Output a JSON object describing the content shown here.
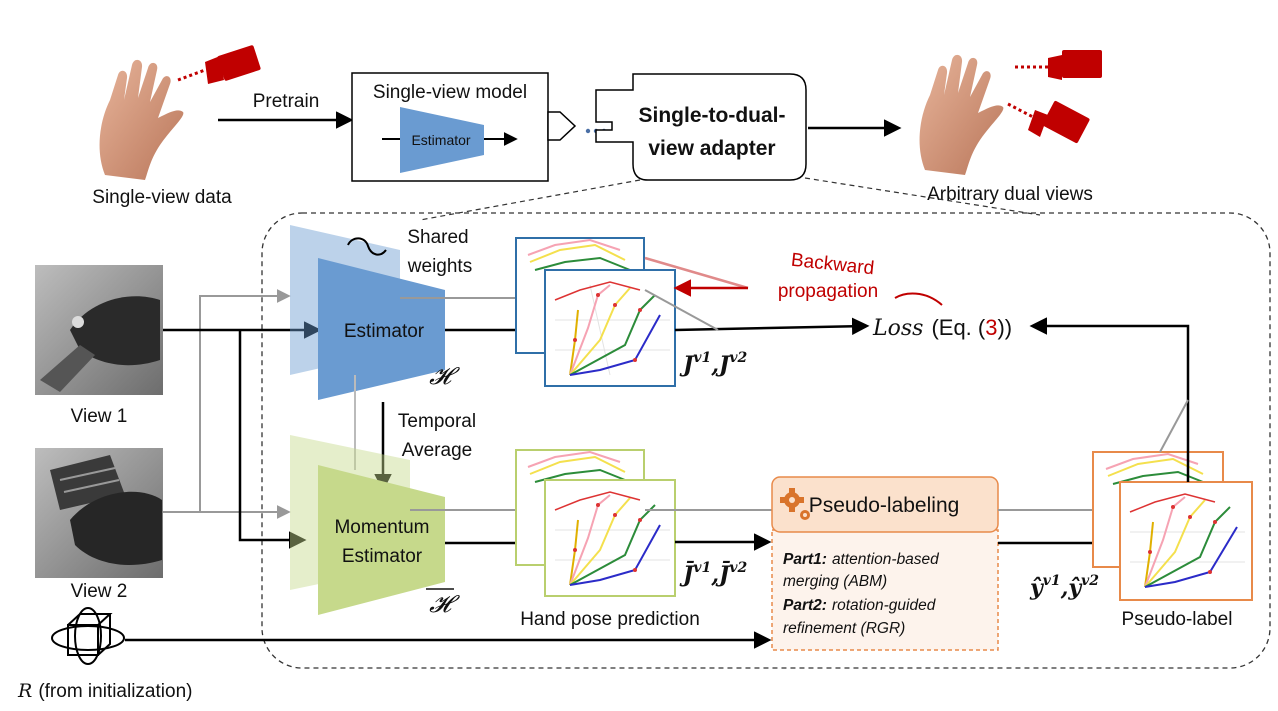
{
  "top": {
    "single_view_data": "Single-view data",
    "pretrain": "Pretrain",
    "single_view_model": "Single-view model",
    "estimator": "Estimator",
    "adapter_line1": "Single-to-dual-",
    "adapter_line2": "view adapter",
    "arbitrary_dual_views": "Arbitrary dual views"
  },
  "main": {
    "view1": "View 1",
    "view2": "View 2",
    "shared_line1": "Shared",
    "shared_line2": "weights",
    "estimator": "Estimator",
    "h_symbol": "𝓗",
    "h_bar_symbol": "𝓗",
    "temporal_line1": "Temporal",
    "temporal_line2": "Average",
    "momentum_line1": "Momentum",
    "momentum_line2": "Estimator",
    "backward_line1": "Backward",
    "backward_line2": "propagation",
    "loss": "Loss",
    "loss_eq_open": "(Eq. (",
    "loss_eq_num": "3",
    "loss_eq_close": "))",
    "j_label": "J",
    "j_sup1": "v1",
    "j_comma": ",",
    "j_sup2": "v2",
    "jbar_label": "J̄",
    "jbar_sup1": "v1",
    "jbar_sup2": "v2",
    "yhat_label": "ŷ",
    "yhat_sup1": "v1",
    "yhat_sup2": "v2",
    "hand_pose_prediction": "Hand pose prediction",
    "pseudo_labeling": "Pseudo-labeling",
    "part1_title": "Part1:",
    "part1_text_a": "attention-based",
    "part1_text_b": "merging (ABM)",
    "part2_title": "Part2:",
    "part2_text_a": "rotation-guided",
    "part2_text_b": "refinement (RGR)",
    "pseudo_label": "Pseudo-label",
    "r_symbol": "R",
    "r_text": "(from initialization)"
  },
  "colors": {
    "estimator_blue": "#6a9bd1",
    "momentum_green": "#c6d98b",
    "backward_red": "#c00000",
    "pseudo_orange": "#e88a4a",
    "camera_red": "#c00000"
  }
}
